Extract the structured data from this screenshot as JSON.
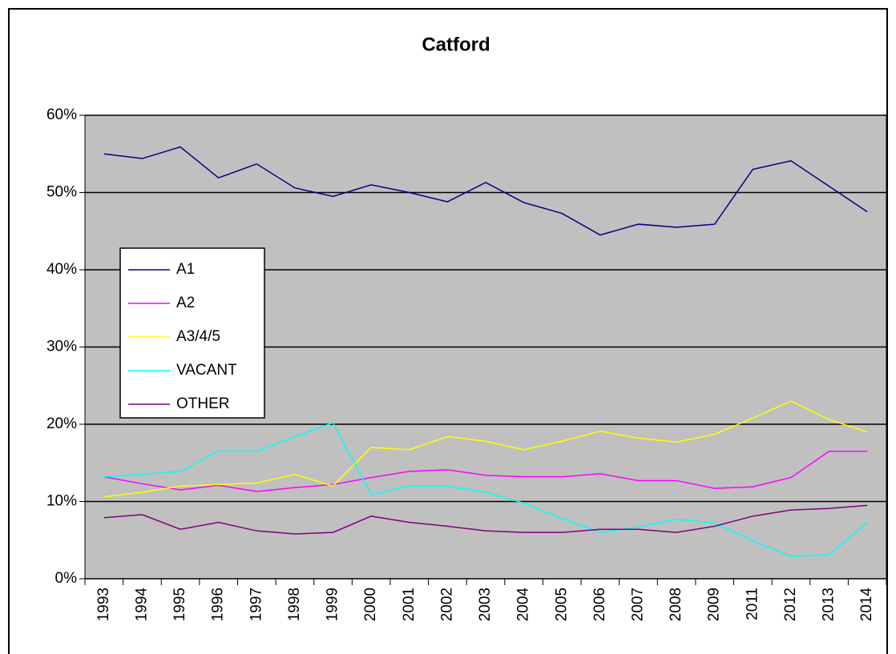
{
  "chart_data": {
    "type": "line",
    "title": "Catford",
    "categories": [
      "1993",
      "1994",
      "1995",
      "1996",
      "1997",
      "1998",
      "1999",
      "2000",
      "2001",
      "2002",
      "2003",
      "2004",
      "2005",
      "2006",
      "2007",
      "2008",
      "2009",
      "2011",
      "2012",
      "2013",
      "2014"
    ],
    "ylim": [
      0,
      60
    ],
    "yticks": [
      {
        "value": 0,
        "label": "0%"
      },
      {
        "value": 10,
        "label": "10%"
      },
      {
        "value": 20,
        "label": "20%"
      },
      {
        "value": 30,
        "label": "30%"
      },
      {
        "value": 40,
        "label": "40%"
      },
      {
        "value": 50,
        "label": "50%"
      },
      {
        "value": 60,
        "label": "60%"
      }
    ],
    "grid": true,
    "legend": "left",
    "series": [
      {
        "name": "A1",
        "color": "#000080",
        "values": [
          55,
          54.4,
          55.9,
          51.9,
          53.7,
          50.6,
          49.5,
          51,
          50,
          48.8,
          51.3,
          48.7,
          47.3,
          44.5,
          45.9,
          45.5,
          45.9,
          53,
          54.1,
          50.8,
          47.5
        ]
      },
      {
        "name": "A2",
        "color": "#ff00ff",
        "values": [
          13.2,
          12.3,
          11.5,
          12.1,
          11.3,
          11.8,
          12.2,
          13.1,
          13.9,
          14.1,
          13.4,
          13.2,
          13.2,
          13.6,
          12.7,
          12.7,
          11.7,
          11.9,
          13.1,
          16.5,
          16.5
        ]
      },
      {
        "name": "A3/4/5",
        "color": "#ffff00",
        "values": [
          10.6,
          11.2,
          12,
          12.2,
          12.4,
          13.5,
          12,
          17,
          16.7,
          18.4,
          17.8,
          16.7,
          17.8,
          19.1,
          18.2,
          17.7,
          18.7,
          20.8,
          23,
          20.6,
          19
        ]
      },
      {
        "name": "VACANT",
        "color": "#00ffff",
        "values": [
          13.2,
          13.5,
          13.9,
          16.5,
          16.5,
          18.4,
          20.2,
          10.9,
          12,
          12,
          11.2,
          9.8,
          7.8,
          6,
          6.7,
          7.7,
          7.2,
          4.9,
          2.9,
          3.1,
          7.3
        ]
      },
      {
        "name": "OTHER",
        "color": "#800080",
        "values": [
          7.9,
          8.3,
          6.4,
          7.3,
          6.2,
          5.8,
          6,
          8.1,
          7.3,
          6.8,
          6.2,
          6,
          6,
          6.4,
          6.4,
          6,
          6.8,
          8.1,
          8.9,
          9.1,
          9.5
        ]
      }
    ]
  }
}
